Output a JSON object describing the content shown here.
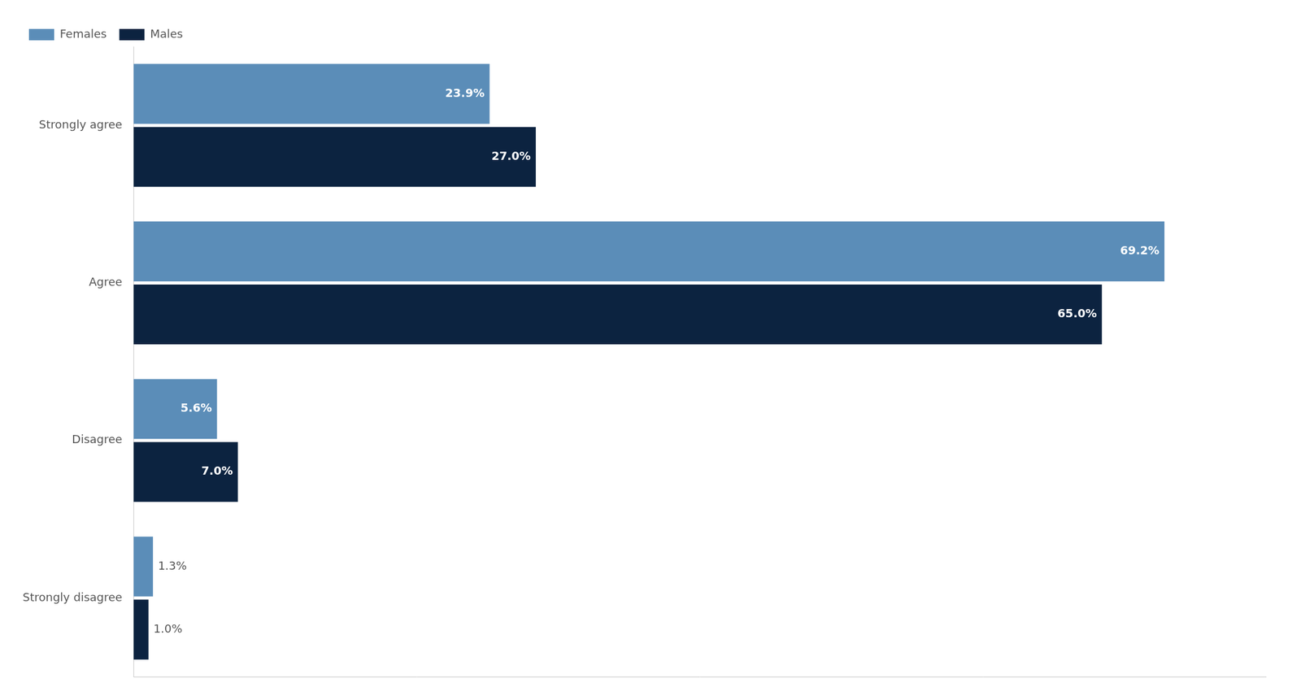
{
  "chart_data": {
    "type": "bar",
    "orientation": "horizontal",
    "categories": [
      "Strongly disagree",
      "Disagree",
      "Agree",
      "Strongly agree"
    ],
    "series": [
      {
        "name": "Females",
        "color": "#5B8DB8",
        "values": [
          1.3,
          5.6,
          69.2,
          23.9
        ],
        "value_labels": [
          "1.3%",
          "5.6%",
          "69.2%",
          "23.9%"
        ]
      },
      {
        "name": "Males",
        "color": "#0C2340",
        "values": [
          1.0,
          7.0,
          65.0,
          27.0
        ],
        "value_labels": [
          "1.0%",
          "7.0%",
          "65.0%",
          "27.0%"
        ]
      }
    ],
    "xlim": [
      0,
      76
    ],
    "grid": false,
    "legend": "top-left",
    "data_labels": true,
    "tick_labels": "y"
  }
}
